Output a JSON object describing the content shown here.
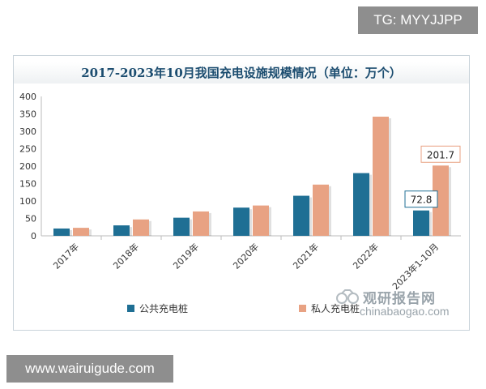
{
  "overlay": {
    "tg_text": "TG: MYYJJPP",
    "site_text": "www.wairuigude.com",
    "watermark_brand": "观研报告网",
    "watermark_url": "chinabaogao.com"
  },
  "chart_data": {
    "type": "bar",
    "title": "2017-2023年10月我国充电设施规模情况（单位：万个）",
    "categories": [
      "2017年",
      "2018年",
      "2019年",
      "2020年",
      "2021年",
      "2022年",
      "2023年1-10月"
    ],
    "series": [
      {
        "name": "公共充电桩",
        "color": "#1f6f94",
        "values": [
          21,
          30,
          52,
          81,
          115,
          180,
          72.8
        ]
      },
      {
        "name": "私人充电桩",
        "color": "#e8a283",
        "values": [
          23,
          47,
          70,
          87,
          147,
          342,
          201.7
        ]
      }
    ],
    "ylim": [
      0,
      400
    ],
    "yticks": [
      "0",
      "50",
      "100",
      "150",
      "200",
      "250",
      "300",
      "350",
      "400"
    ],
    "annotations": [
      {
        "series": 0,
        "index": 6,
        "text": "72.8"
      },
      {
        "series": 1,
        "index": 6,
        "text": "201.7"
      }
    ],
    "grid": false,
    "legend": "bottom"
  }
}
